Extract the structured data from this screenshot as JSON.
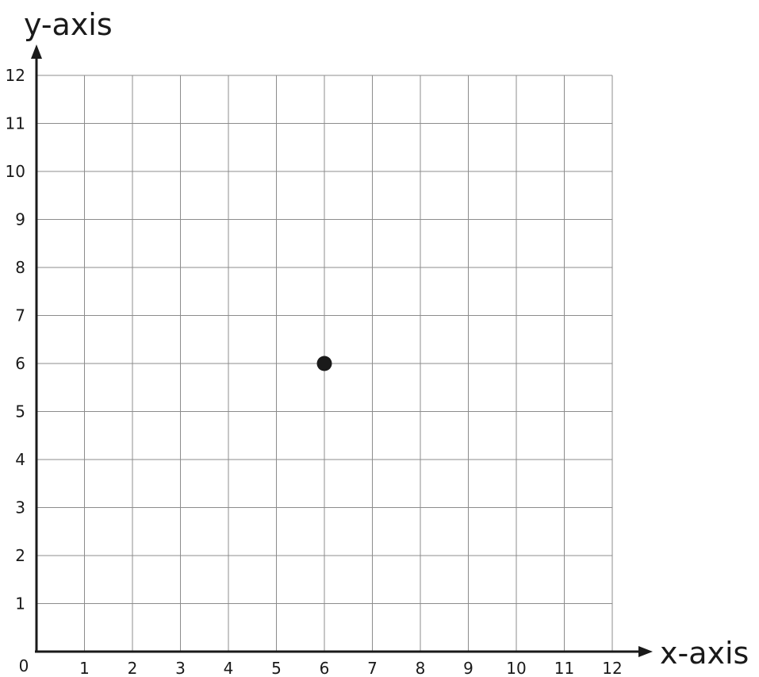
{
  "chart_data": {
    "type": "scatter",
    "title": "",
    "xlabel": "x-axis",
    "ylabel": "y-axis",
    "xlim": [
      0,
      12
    ],
    "ylim": [
      0,
      12
    ],
    "x_ticks": [
      "1",
      "2",
      "3",
      "4",
      "5",
      "6",
      "7",
      "8",
      "9",
      "10",
      "11",
      "12"
    ],
    "y_ticks": [
      "1",
      "2",
      "3",
      "4",
      "5",
      "6",
      "7",
      "8",
      "9",
      "10",
      "11",
      "12"
    ],
    "origin_label": "0",
    "grid": true,
    "points": [
      {
        "x": 6,
        "y": 6
      }
    ],
    "point_color": "#1a1a1a"
  }
}
